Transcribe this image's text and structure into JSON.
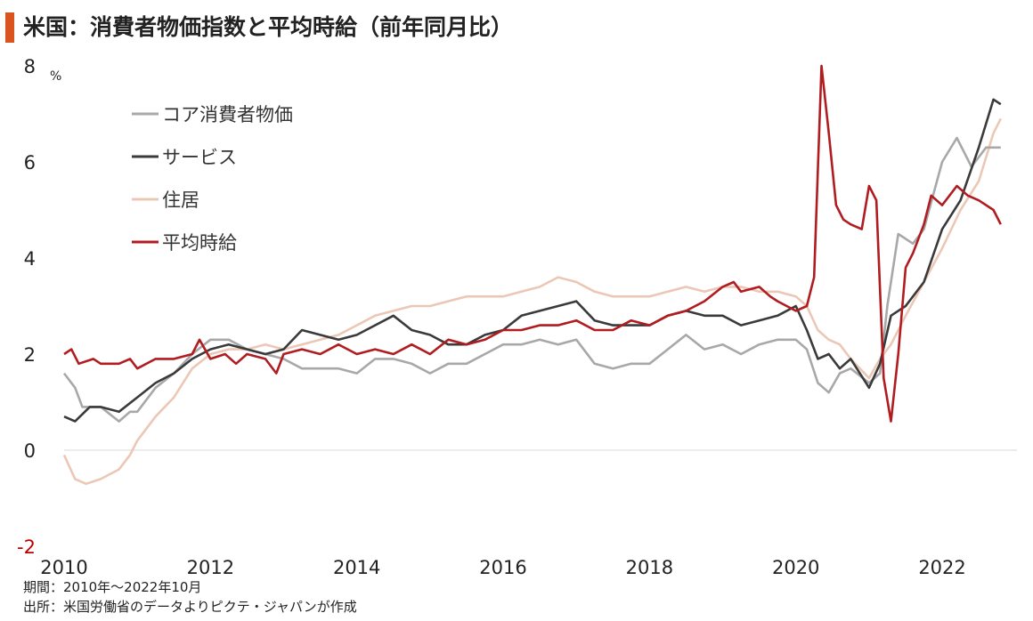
{
  "title": "米国：消費者物価指数と平均時給（前年同月比）",
  "notes": {
    "period": "期間：2010年～2022年10月",
    "source": "出所：米国労働省のデータよりピクテ・ジャパンが作成"
  },
  "colors": {
    "title_bar": "#d9541e",
    "core_cpi": "#a8a8a8",
    "services": "#3a3a3a",
    "housing": "#ecc7b6",
    "wages": "#b01c20",
    "neg_tick": "#c00000"
  },
  "chart_data": {
    "type": "line",
    "title": "米国：消費者物価指数と平均時給（前年同月比）",
    "ylabel": "%",
    "xlabel": "",
    "ylim": [
      -2,
      8
    ],
    "xlim": [
      2010,
      2022.9
    ],
    "yticks": [
      8,
      6,
      4,
      2,
      0,
      -2
    ],
    "ytick_labels": [
      "8",
      "6",
      "4",
      "2",
      "0",
      "-2"
    ],
    "xticks": [
      2010,
      2012,
      2014,
      2016,
      2018,
      2020,
      2022
    ],
    "xtick_labels": [
      "2010",
      "2012",
      "2014",
      "2016",
      "2018",
      "2020",
      "2022"
    ],
    "legend_position": "top-left",
    "grid": false,
    "zero_line": true,
    "series": [
      {
        "name": "コア消費者物価",
        "color": "#a8a8a8",
        "points": [
          [
            2010.0,
            1.6
          ],
          [
            2010.15,
            1.3
          ],
          [
            2010.25,
            0.9
          ],
          [
            2010.5,
            0.9
          ],
          [
            2010.75,
            0.6
          ],
          [
            2010.9,
            0.8
          ],
          [
            2011.0,
            0.8
          ],
          [
            2011.25,
            1.3
          ],
          [
            2011.5,
            1.6
          ],
          [
            2011.75,
            2.0
          ],
          [
            2012.0,
            2.3
          ],
          [
            2012.25,
            2.3
          ],
          [
            2012.5,
            2.1
          ],
          [
            2012.75,
            2.0
          ],
          [
            2013.0,
            1.9
          ],
          [
            2013.25,
            1.7
          ],
          [
            2013.5,
            1.7
          ],
          [
            2013.75,
            1.7
          ],
          [
            2014.0,
            1.6
          ],
          [
            2014.25,
            1.9
          ],
          [
            2014.5,
            1.9
          ],
          [
            2014.75,
            1.8
          ],
          [
            2015.0,
            1.6
          ],
          [
            2015.25,
            1.8
          ],
          [
            2015.5,
            1.8
          ],
          [
            2015.75,
            2.0
          ],
          [
            2016.0,
            2.2
          ],
          [
            2016.25,
            2.2
          ],
          [
            2016.5,
            2.3
          ],
          [
            2016.75,
            2.2
          ],
          [
            2017.0,
            2.3
          ],
          [
            2017.25,
            1.8
          ],
          [
            2017.5,
            1.7
          ],
          [
            2017.75,
            1.8
          ],
          [
            2018.0,
            1.8
          ],
          [
            2018.25,
            2.1
          ],
          [
            2018.5,
            2.4
          ],
          [
            2018.75,
            2.1
          ],
          [
            2019.0,
            2.2
          ],
          [
            2019.25,
            2.0
          ],
          [
            2019.5,
            2.2
          ],
          [
            2019.75,
            2.3
          ],
          [
            2020.0,
            2.3
          ],
          [
            2020.15,
            2.1
          ],
          [
            2020.3,
            1.4
          ],
          [
            2020.45,
            1.2
          ],
          [
            2020.6,
            1.6
          ],
          [
            2020.75,
            1.7
          ],
          [
            2021.0,
            1.4
          ],
          [
            2021.15,
            1.6
          ],
          [
            2021.25,
            3.0
          ],
          [
            2021.4,
            4.5
          ],
          [
            2021.6,
            4.3
          ],
          [
            2021.75,
            4.6
          ],
          [
            2022.0,
            6.0
          ],
          [
            2022.2,
            6.5
          ],
          [
            2022.4,
            5.9
          ],
          [
            2022.6,
            6.3
          ],
          [
            2022.8,
            6.3
          ]
        ]
      },
      {
        "name": "サービス",
        "color": "#3a3a3a",
        "points": [
          [
            2010.0,
            0.7
          ],
          [
            2010.15,
            0.6
          ],
          [
            2010.35,
            0.9
          ],
          [
            2010.5,
            0.9
          ],
          [
            2010.75,
            0.8
          ],
          [
            2011.0,
            1.1
          ],
          [
            2011.25,
            1.4
          ],
          [
            2011.5,
            1.6
          ],
          [
            2011.75,
            1.9
          ],
          [
            2012.0,
            2.1
          ],
          [
            2012.25,
            2.2
          ],
          [
            2012.5,
            2.1
          ],
          [
            2012.75,
            2.0
          ],
          [
            2013.0,
            2.1
          ],
          [
            2013.25,
            2.5
          ],
          [
            2013.5,
            2.4
          ],
          [
            2013.75,
            2.3
          ],
          [
            2014.0,
            2.4
          ],
          [
            2014.25,
            2.6
          ],
          [
            2014.5,
            2.8
          ],
          [
            2014.75,
            2.5
          ],
          [
            2015.0,
            2.4
          ],
          [
            2015.25,
            2.2
          ],
          [
            2015.5,
            2.2
          ],
          [
            2015.75,
            2.4
          ],
          [
            2016.0,
            2.5
          ],
          [
            2016.25,
            2.8
          ],
          [
            2016.5,
            2.9
          ],
          [
            2016.75,
            3.0
          ],
          [
            2017.0,
            3.1
          ],
          [
            2017.25,
            2.7
          ],
          [
            2017.5,
            2.6
          ],
          [
            2017.75,
            2.6
          ],
          [
            2018.0,
            2.6
          ],
          [
            2018.25,
            2.8
          ],
          [
            2018.5,
            2.9
          ],
          [
            2018.75,
            2.8
          ],
          [
            2019.0,
            2.8
          ],
          [
            2019.25,
            2.6
          ],
          [
            2019.5,
            2.7
          ],
          [
            2019.75,
            2.8
          ],
          [
            2020.0,
            3.0
          ],
          [
            2020.15,
            2.5
          ],
          [
            2020.3,
            1.9
          ],
          [
            2020.45,
            2.0
          ],
          [
            2020.6,
            1.7
          ],
          [
            2020.75,
            1.9
          ],
          [
            2021.0,
            1.3
          ],
          [
            2021.15,
            1.8
          ],
          [
            2021.3,
            2.8
          ],
          [
            2021.5,
            3.0
          ],
          [
            2021.75,
            3.5
          ],
          [
            2022.0,
            4.6
          ],
          [
            2022.25,
            5.2
          ],
          [
            2022.5,
            6.3
          ],
          [
            2022.7,
            7.3
          ],
          [
            2022.8,
            7.2
          ]
        ]
      },
      {
        "name": "住居",
        "color": "#ecc7b6",
        "points": [
          [
            2010.0,
            -0.1
          ],
          [
            2010.15,
            -0.6
          ],
          [
            2010.3,
            -0.7
          ],
          [
            2010.5,
            -0.6
          ],
          [
            2010.75,
            -0.4
          ],
          [
            2010.9,
            -0.1
          ],
          [
            2011.0,
            0.2
          ],
          [
            2011.25,
            0.7
          ],
          [
            2011.5,
            1.1
          ],
          [
            2011.75,
            1.7
          ],
          [
            2012.0,
            2.0
          ],
          [
            2012.25,
            2.1
          ],
          [
            2012.5,
            2.1
          ],
          [
            2012.75,
            2.2
          ],
          [
            2013.0,
            2.1
          ],
          [
            2013.25,
            2.2
          ],
          [
            2013.5,
            2.3
          ],
          [
            2013.75,
            2.4
          ],
          [
            2014.0,
            2.6
          ],
          [
            2014.25,
            2.8
          ],
          [
            2014.5,
            2.9
          ],
          [
            2014.75,
            3.0
          ],
          [
            2015.0,
            3.0
          ],
          [
            2015.25,
            3.1
          ],
          [
            2015.5,
            3.2
          ],
          [
            2015.75,
            3.2
          ],
          [
            2016.0,
            3.2
          ],
          [
            2016.25,
            3.3
          ],
          [
            2016.5,
            3.4
          ],
          [
            2016.75,
            3.6
          ],
          [
            2017.0,
            3.5
          ],
          [
            2017.25,
            3.3
          ],
          [
            2017.5,
            3.2
          ],
          [
            2017.75,
            3.2
          ],
          [
            2018.0,
            3.2
          ],
          [
            2018.25,
            3.3
          ],
          [
            2018.5,
            3.4
          ],
          [
            2018.75,
            3.3
          ],
          [
            2019.0,
            3.4
          ],
          [
            2019.25,
            3.4
          ],
          [
            2019.5,
            3.3
          ],
          [
            2019.75,
            3.3
          ],
          [
            2020.0,
            3.2
          ],
          [
            2020.15,
            3.0
          ],
          [
            2020.3,
            2.5
          ],
          [
            2020.45,
            2.3
          ],
          [
            2020.6,
            2.2
          ],
          [
            2020.75,
            1.9
          ],
          [
            2021.0,
            1.5
          ],
          [
            2021.15,
            1.9
          ],
          [
            2021.3,
            2.2
          ],
          [
            2021.5,
            2.8
          ],
          [
            2021.75,
            3.5
          ],
          [
            2022.0,
            4.2
          ],
          [
            2022.25,
            5.0
          ],
          [
            2022.5,
            5.6
          ],
          [
            2022.7,
            6.6
          ],
          [
            2022.8,
            6.9
          ]
        ]
      },
      {
        "name": "平均時給",
        "color": "#b01c20",
        "points": [
          [
            2010.0,
            2.0
          ],
          [
            2010.1,
            2.1
          ],
          [
            2010.2,
            1.8
          ],
          [
            2010.4,
            1.9
          ],
          [
            2010.5,
            1.8
          ],
          [
            2010.75,
            1.8
          ],
          [
            2010.9,
            1.9
          ],
          [
            2011.0,
            1.7
          ],
          [
            2011.25,
            1.9
          ],
          [
            2011.5,
            1.9
          ],
          [
            2011.75,
            2.0
          ],
          [
            2011.85,
            2.3
          ],
          [
            2012.0,
            1.9
          ],
          [
            2012.2,
            2.0
          ],
          [
            2012.35,
            1.8
          ],
          [
            2012.5,
            2.0
          ],
          [
            2012.75,
            1.9
          ],
          [
            2012.9,
            1.6
          ],
          [
            2013.0,
            2.0
          ],
          [
            2013.25,
            2.1
          ],
          [
            2013.5,
            2.0
          ],
          [
            2013.75,
            2.2
          ],
          [
            2014.0,
            2.0
          ],
          [
            2014.25,
            2.1
          ],
          [
            2014.5,
            2.0
          ],
          [
            2014.75,
            2.2
          ],
          [
            2015.0,
            2.0
          ],
          [
            2015.25,
            2.3
          ],
          [
            2015.5,
            2.2
          ],
          [
            2015.75,
            2.3
          ],
          [
            2016.0,
            2.5
          ],
          [
            2016.25,
            2.5
          ],
          [
            2016.5,
            2.6
          ],
          [
            2016.75,
            2.6
          ],
          [
            2017.0,
            2.7
          ],
          [
            2017.25,
            2.5
          ],
          [
            2017.5,
            2.5
          ],
          [
            2017.75,
            2.7
          ],
          [
            2018.0,
            2.6
          ],
          [
            2018.25,
            2.8
          ],
          [
            2018.5,
            2.9
          ],
          [
            2018.75,
            3.1
          ],
          [
            2019.0,
            3.4
          ],
          [
            2019.15,
            3.5
          ],
          [
            2019.25,
            3.3
          ],
          [
            2019.5,
            3.4
          ],
          [
            2019.65,
            3.2
          ],
          [
            2019.75,
            3.1
          ],
          [
            2020.0,
            2.9
          ],
          [
            2020.15,
            3.0
          ],
          [
            2020.25,
            3.6
          ],
          [
            2020.35,
            8.0
          ],
          [
            2020.45,
            6.6
          ],
          [
            2020.55,
            5.1
          ],
          [
            2020.65,
            4.8
          ],
          [
            2020.75,
            4.7
          ],
          [
            2020.9,
            4.6
          ],
          [
            2021.0,
            5.5
          ],
          [
            2021.1,
            5.2
          ],
          [
            2021.2,
            1.5
          ],
          [
            2021.3,
            0.6
          ],
          [
            2021.4,
            2.0
          ],
          [
            2021.5,
            3.8
          ],
          [
            2021.6,
            4.1
          ],
          [
            2021.75,
            4.7
          ],
          [
            2021.85,
            5.3
          ],
          [
            2022.0,
            5.1
          ],
          [
            2022.2,
            5.5
          ],
          [
            2022.35,
            5.3
          ],
          [
            2022.5,
            5.2
          ],
          [
            2022.7,
            5.0
          ],
          [
            2022.8,
            4.7
          ]
        ]
      }
    ]
  }
}
